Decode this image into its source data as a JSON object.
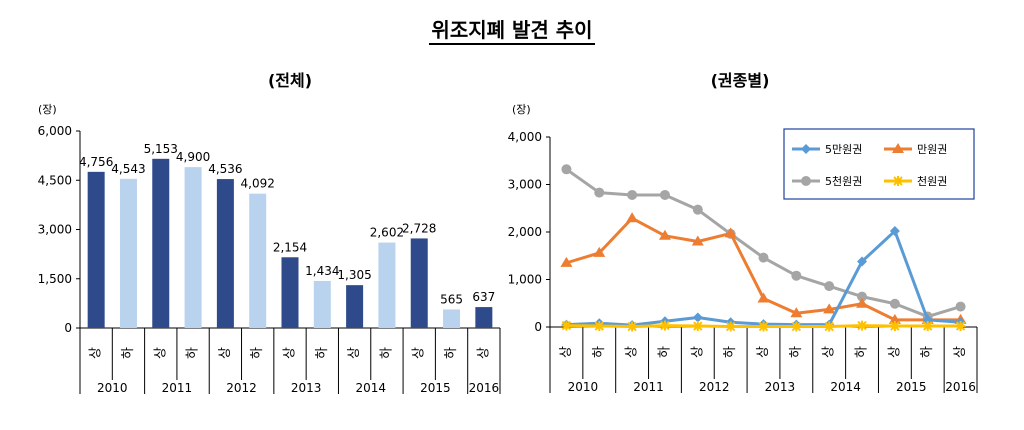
{
  "main_title": "위조지폐 발견 추이",
  "chart_data": [
    {
      "type": "bar",
      "title": "(전체)",
      "unit_label": "(장)",
      "ylim": [
        0,
        6000
      ],
      "yticks": [
        "0",
        "1,500",
        "3,000",
        "4,500",
        "6,000"
      ],
      "ytick_values": [
        0,
        1500,
        3000,
        4500,
        6000
      ],
      "categories": [
        "상",
        "하",
        "상",
        "하",
        "상",
        "하",
        "상",
        "하",
        "상",
        "하",
        "상",
        "하",
        "상"
      ],
      "years": [
        "2010",
        "2011",
        "2012",
        "2013",
        "2014",
        "2015",
        "2016"
      ],
      "values": [
        4756,
        4543,
        5153,
        4900,
        4536,
        4092,
        2154,
        1434,
        1305,
        2602,
        2728,
        565,
        637
      ],
      "value_labels": [
        "4,756",
        "4,543",
        "5,153",
        "4,900",
        "4,536",
        "4,092",
        "2,154",
        "1,434",
        "1,305",
        "2,602",
        "2,728",
        "565",
        "637"
      ],
      "colors": {
        "first_half": "#2E4A8A",
        "second_half": "#B9D3EE"
      }
    },
    {
      "type": "line",
      "title": "(권종별)",
      "unit_label": "(장)",
      "ylim": [
        0,
        4000
      ],
      "yticks": [
        "0",
        "1,000",
        "2,000",
        "3,000",
        "4,000"
      ],
      "ytick_values": [
        0,
        1000,
        2000,
        3000,
        4000
      ],
      "categories": [
        "상",
        "하",
        "상",
        "하",
        "상",
        "하",
        "상",
        "하",
        "상",
        "하",
        "상",
        "하",
        "상"
      ],
      "years": [
        "2010",
        "2011",
        "2012",
        "2013",
        "2014",
        "2015",
        "2016"
      ],
      "legend_position": "top-right",
      "series": [
        {
          "name": "5만원권",
          "color": "#5B9BD5",
          "marker": "diamond",
          "values": [
            50,
            80,
            40,
            120,
            200,
            100,
            60,
            50,
            50,
            1380,
            2020,
            150,
            100
          ]
        },
        {
          "name": "만원권",
          "color": "#ED7D31",
          "marker": "triangle",
          "values": [
            1350,
            1560,
            2290,
            1920,
            1800,
            1970,
            600,
            290,
            370,
            490,
            150,
            150,
            150
          ]
        },
        {
          "name": "5천원권",
          "color": "#A5A5A5",
          "marker": "circle",
          "values": [
            3320,
            2830,
            2780,
            2780,
            2470,
            1960,
            1460,
            1080,
            860,
            640,
            490,
            220,
            430
          ]
        },
        {
          "name": "천원권",
          "color": "#FFC000",
          "marker": "star",
          "values": [
            30,
            20,
            10,
            30,
            20,
            10,
            10,
            10,
            10,
            30,
            20,
            20,
            20
          ]
        }
      ]
    }
  ]
}
